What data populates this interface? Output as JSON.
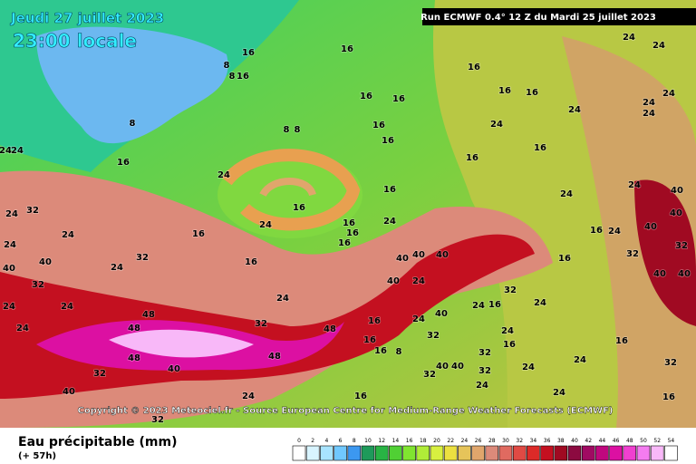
{
  "header": {
    "date": "Jeudi 27 juillet 2023",
    "time": "23:00 locale",
    "run": "Run ECMWF 0.4° 12 Z du Mardi 25 juillet 2023"
  },
  "copyright": "Copyright © 2023 Meteociel.fr - Source European Centre for Medium-Range Weather Forecasts (ECMWF)",
  "legend": {
    "title": "Eau précipitable (mm)",
    "subtitle": "(+ 57h)",
    "ticks": [
      0,
      2,
      4,
      6,
      8,
      10,
      12,
      14,
      16,
      18,
      20,
      22,
      24,
      26,
      28,
      30,
      32,
      34,
      36,
      38,
      40,
      42,
      44,
      46,
      48,
      50,
      52,
      54
    ],
    "colors": [
      "#ffffff",
      "#d8f4ff",
      "#a8e4ff",
      "#70c8ff",
      "#3c98f0",
      "#1e9a5a",
      "#28b444",
      "#50d034",
      "#80e430",
      "#b0ec38",
      "#d8f040",
      "#ece040",
      "#e6c45a",
      "#e0a66c",
      "#dc8a7a",
      "#e06a60",
      "#e04a44",
      "#dc2a28",
      "#c41020",
      "#a00a22",
      "#8c0a40",
      "#a00a62",
      "#c0087e",
      "#dc10a2",
      "#f040d0",
      "#f47cf0",
      "#f8b8f8",
      "#ffffff"
    ]
  },
  "contour_labels": [
    16,
    8,
    8,
    16,
    16,
    16,
    16,
    16,
    16,
    16,
    8,
    8,
    8,
    16,
    16,
    16,
    24,
    24,
    24,
    24,
    24,
    24,
    24,
    24,
    24,
    16,
    16,
    24,
    16,
    24,
    16,
    16,
    32,
    24,
    24,
    24,
    40,
    40,
    32,
    32,
    24,
    24,
    24,
    24,
    24,
    32,
    48,
    48,
    48,
    48,
    48,
    32,
    40,
    40,
    32,
    24,
    16,
    40,
    40,
    40,
    40,
    24,
    24,
    16,
    16,
    16,
    16,
    24,
    24,
    40,
    40,
    40,
    32,
    40,
    40,
    32,
    24,
    16,
    16,
    24,
    40,
    32,
    16,
    16,
    8,
    16,
    32,
    40,
    40,
    32,
    32,
    24,
    24,
    16,
    32,
    16,
    24,
    24,
    16,
    24,
    24,
    32,
    16,
    24
  ]
}
